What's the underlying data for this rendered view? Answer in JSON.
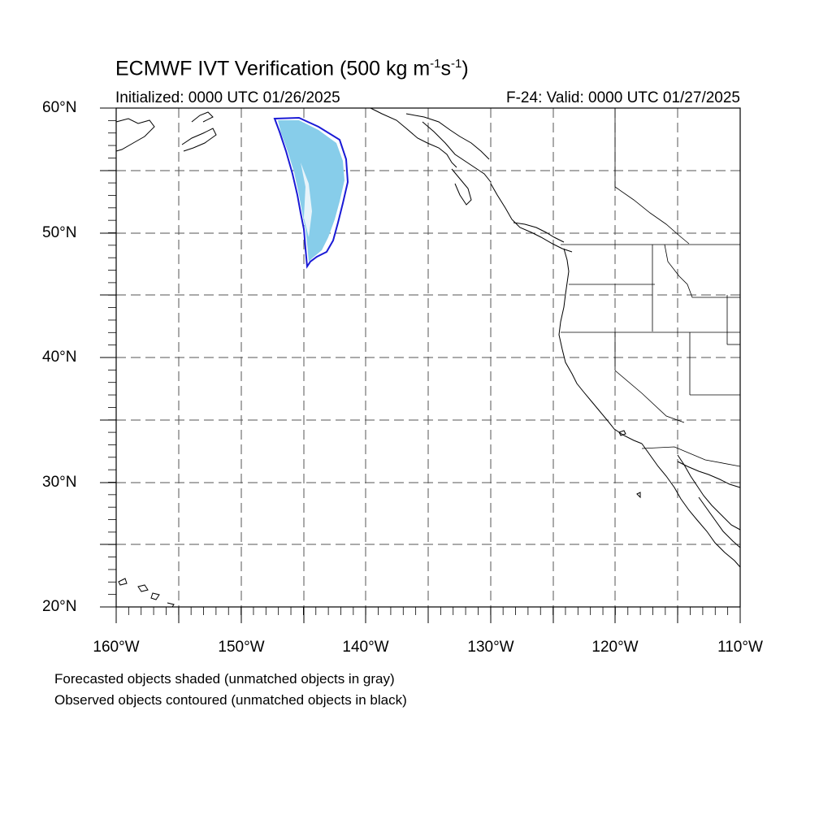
{
  "title": {
    "main": "ECMWF IVT Verification (500 kg m",
    "sup1": "-1",
    "mid": "s",
    "sup2": "-1",
    "end": ")"
  },
  "subtitle": {
    "initialized": "Initialized: 0000 UTC 01/26/2025",
    "valid": "F-24: Valid: 0000 UTC 01/27/2025"
  },
  "axes": {
    "lat_labels": [
      "60°N",
      "50°N",
      "40°N",
      "30°N",
      "20°N"
    ],
    "lon_labels": [
      "160°W",
      "150°W",
      "140°W",
      "130°W",
      "120°W",
      "110°W"
    ],
    "lat_range": [
      20,
      60
    ],
    "lon_range": [
      -160,
      -110
    ],
    "grid": "dashed"
  },
  "legend": {
    "line1": "Forecasted objects shaded (unmatched objects in gray)",
    "line2": "Observed objects contoured (unmatched objects in black)"
  },
  "colors": {
    "forecast_fill": "#87cdea",
    "observed_contour": "#1a1ad6",
    "coastline": "#000000",
    "grid": "#555555"
  }
}
